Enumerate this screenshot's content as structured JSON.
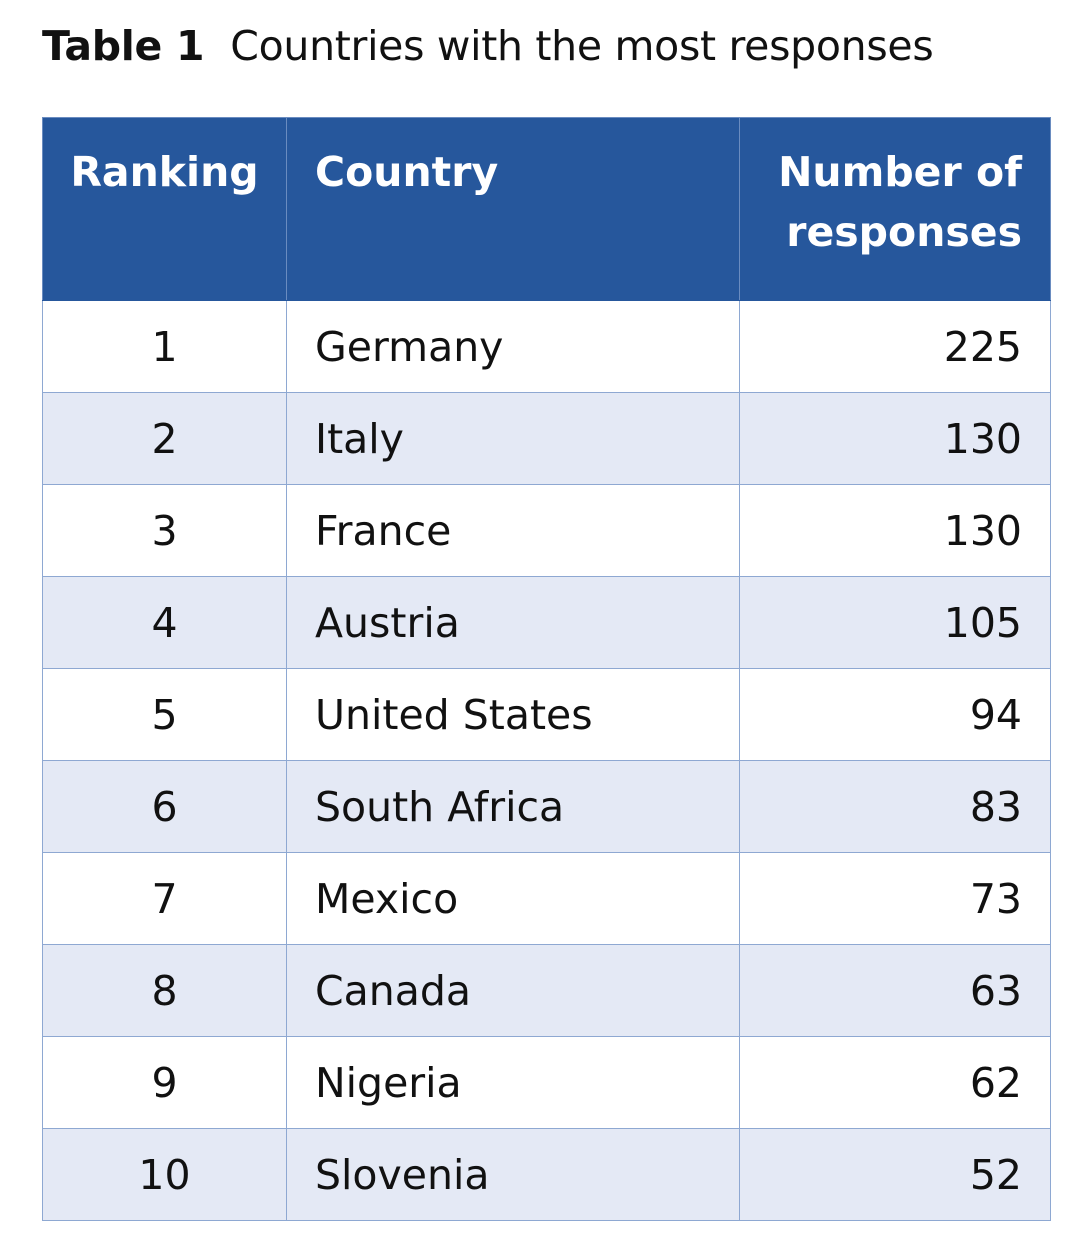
{
  "caption": {
    "number": "Table 1",
    "title": "Countries with the most responses"
  },
  "table": {
    "headers": {
      "ranking": "Ranking",
      "country": "Country",
      "responses": "Number of responses"
    },
    "rows": [
      {
        "ranking": "1",
        "country": "Germany",
        "responses": "225"
      },
      {
        "ranking": "2",
        "country": "Italy",
        "responses": "130"
      },
      {
        "ranking": "3",
        "country": "France",
        "responses": "130"
      },
      {
        "ranking": "4",
        "country": "Austria",
        "responses": "105"
      },
      {
        "ranking": "5",
        "country": "United States",
        "responses": "94"
      },
      {
        "ranking": "6",
        "country": "South Africa",
        "responses": "83"
      },
      {
        "ranking": "7",
        "country": "Mexico",
        "responses": "73"
      },
      {
        "ranking": "8",
        "country": "Canada",
        "responses": "63"
      },
      {
        "ranking": "9",
        "country": "Nigeria",
        "responses": "62"
      },
      {
        "ranking": "10",
        "country": "Slovenia",
        "responses": "52"
      }
    ]
  },
  "colors": {
    "header_background": "#26579c",
    "header_text": "#ffffff",
    "row_alt_background": "#e4e9f5",
    "grid_line": "#8ea8d2"
  }
}
